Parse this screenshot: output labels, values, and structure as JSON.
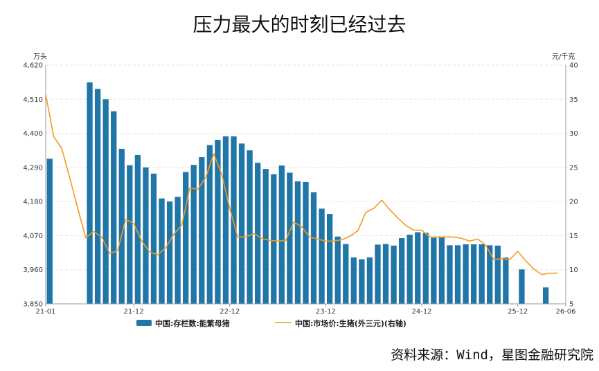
{
  "title": "压力最大的时刻已经过去",
  "source": "资料来源：Wind，星图金融研究院",
  "colors": {
    "bar": "#2176a8",
    "line": "#f39a1e",
    "grid": "#e3e3e3",
    "axis": "#999999"
  },
  "chart_data": {
    "type": "bar",
    "left_unit": "万头",
    "right_unit": "元/千克",
    "ylim_left": [
      3850,
      4620
    ],
    "yticks_left": [
      "3,850",
      "3,960",
      "4,070",
      "4,180",
      "4,290",
      "4,400",
      "4,510",
      "4,620"
    ],
    "ylim_right": [
      5,
      40
    ],
    "yticks_right": [
      "5",
      "10",
      "15",
      "20",
      "25",
      "30",
      "35",
      "40"
    ],
    "x_tick_labels": [
      "21-01",
      "21-12",
      "22-12",
      "23-12",
      "24-12",
      "25-12",
      "26-06"
    ],
    "x_tick_index": [
      0,
      11,
      23,
      35,
      47,
      59,
      65
    ],
    "months": 66,
    "grid": true,
    "legend_position": "bottom",
    "series": [
      {
        "name": "中国:存栏数:能繁母猪",
        "type": "bar",
        "axis": "left",
        "values": [
          4318,
          null,
          null,
          null,
          null,
          4564,
          4543,
          4510,
          4471,
          4350,
          4297,
          4330,
          4290,
          4270,
          4190,
          4180,
          4195,
          4275,
          4298,
          4323,
          4362,
          4379,
          4390,
          4390,
          4367,
          4345,
          4305,
          4285,
          4268,
          4296,
          4273,
          4245,
          4243,
          4210,
          4157,
          4140,
          4067,
          4043,
          4000,
          3994,
          4000,
          4041,
          4043,
          4038,
          4062,
          4073,
          4081,
          4079,
          4063,
          4066,
          4039,
          4039,
          4042,
          4042,
          4042,
          4039,
          4038,
          3999,
          null,
          3961,
          null,
          null,
          3903,
          null,
          null,
          null
        ]
      },
      {
        "name": "中国:市场价:生猪(外三元)(右轴)",
        "type": "line",
        "axis": "right",
        "values": [
          35.7,
          29.5,
          27.8,
          23.5,
          19.0,
          14.7,
          15.6,
          14.8,
          12.4,
          12.8,
          17.4,
          16.8,
          14.2,
          12.6,
          12.2,
          13.2,
          15.2,
          16.5,
          22.0,
          21.8,
          23.5,
          27.0,
          24.0,
          19.0,
          14.8,
          14.8,
          15.3,
          14.6,
          14.3,
          14.2,
          14.3,
          17.0,
          16.3,
          14.8,
          14.5,
          14.2,
          14.2,
          14.4,
          14.9,
          15.7,
          18.4,
          19.0,
          20.2,
          18.8,
          17.6,
          16.5,
          15.8,
          15.8,
          14.8,
          14.8,
          14.8,
          14.8,
          14.6,
          14.2,
          14.5,
          13.6,
          11.5,
          11.6,
          11.5,
          12.7,
          11.3,
          10.1,
          9.3,
          9.5,
          9.5,
          null
        ]
      }
    ]
  }
}
